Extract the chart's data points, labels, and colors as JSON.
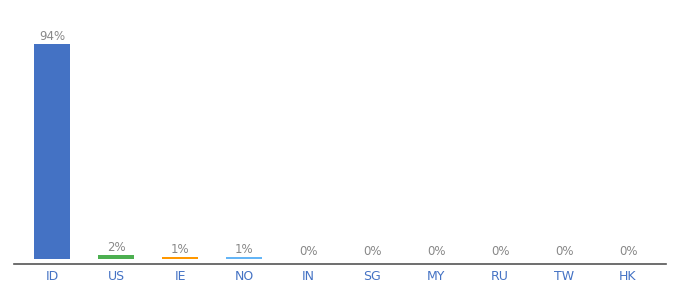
{
  "categories": [
    "ID",
    "US",
    "IE",
    "NO",
    "IN",
    "SG",
    "MY",
    "RU",
    "TW",
    "HK"
  ],
  "values": [
    94,
    2,
    1,
    1,
    0,
    0,
    0,
    0,
    0,
    0
  ],
  "labels": [
    "94%",
    "2%",
    "1%",
    "1%",
    "0%",
    "0%",
    "0%",
    "0%",
    "0%",
    "0%"
  ],
  "bar_colors": [
    "#4472c4",
    "#4caf50",
    "#ff9800",
    "#64b5f6",
    "#4472c4",
    "#4472c4",
    "#4472c4",
    "#4472c4",
    "#4472c4",
    "#4472c4"
  ],
  "background_color": "#ffffff",
  "ylim": [
    0,
    100
  ],
  "label_color": "#888888",
  "tick_color": "#4472c4"
}
